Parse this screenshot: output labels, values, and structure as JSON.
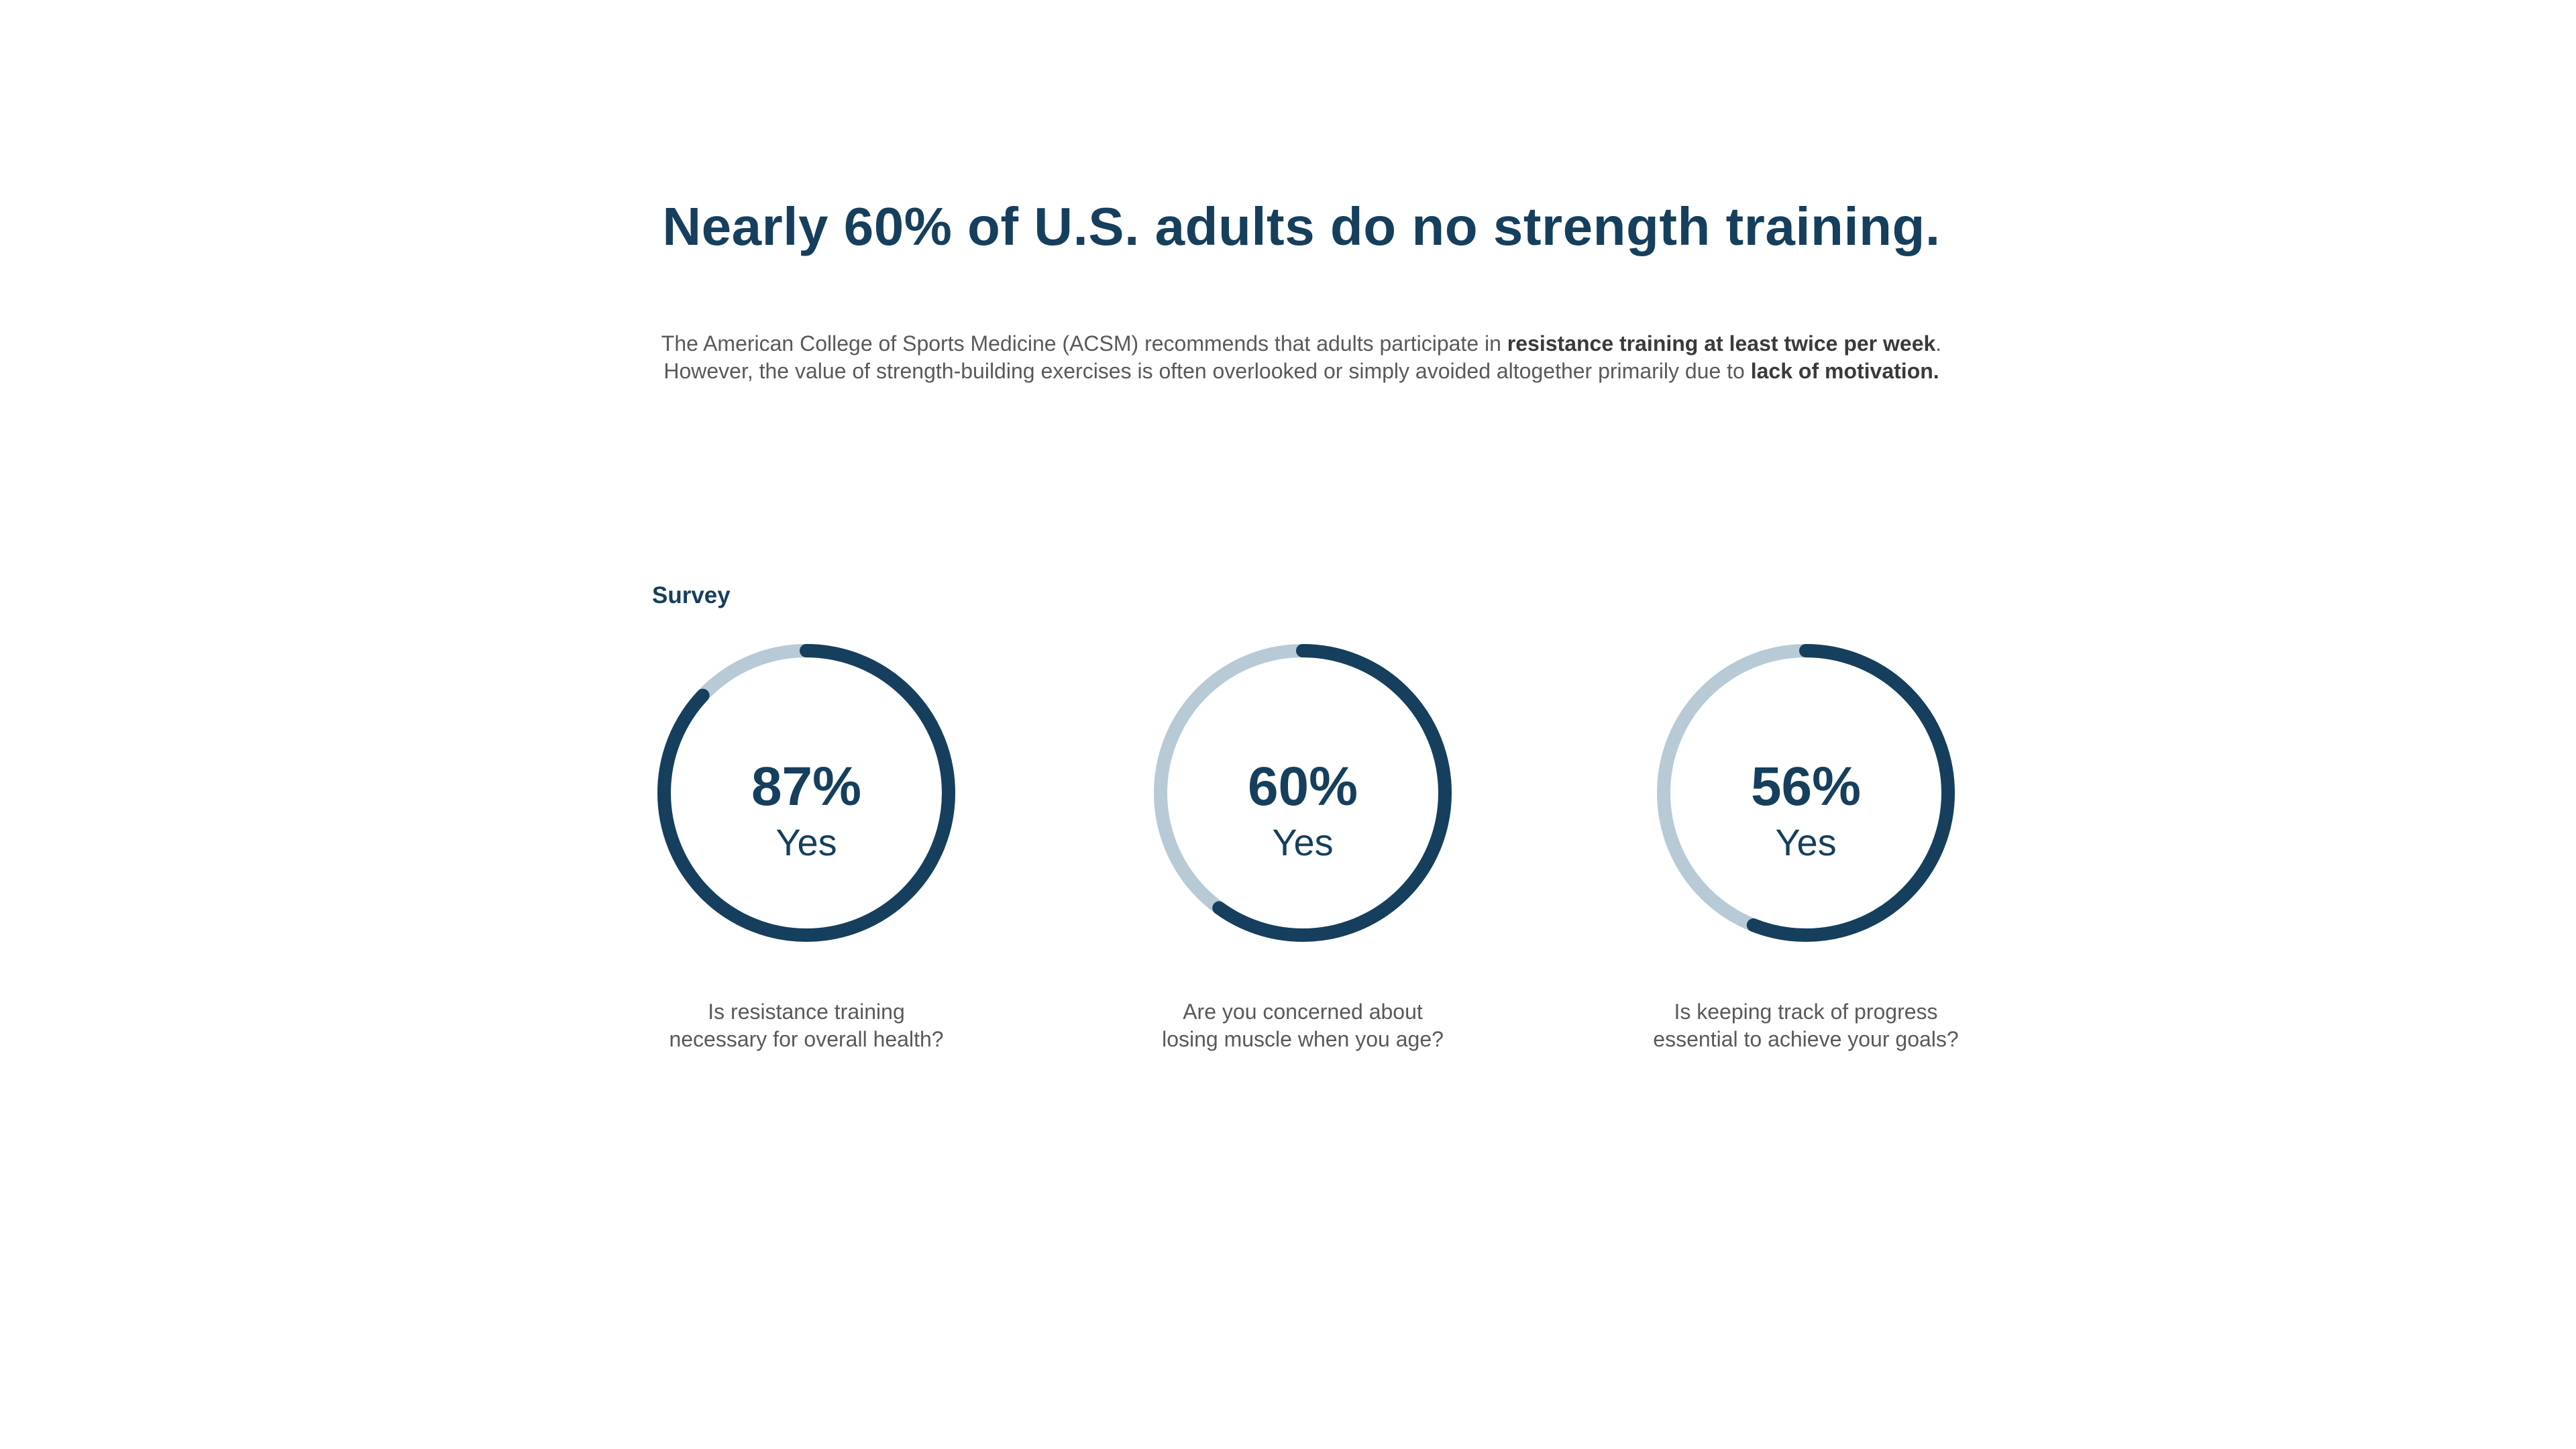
{
  "headline": "Nearly 60% of U.S. adults do no strength training.",
  "intro": {
    "line1_pre": "The American College of Sports Medicine (ACSM) recommends that adults participate in ",
    "line1_bold": "resistance training at least twice per week",
    "line1_post": ".",
    "line2_pre": "However, the value of strength-building exercises is often overlooked or simply avoided altogether primarily due to ",
    "line2_bold": "lack of motivation."
  },
  "survey_label": "Survey",
  "colors": {
    "accent": "#153f5d",
    "track": "#b7cad6",
    "body_text": "#595959"
  },
  "chart_data": {
    "type": "pie",
    "items": [
      {
        "percent_label": "87%",
        "answer": "Yes",
        "value": 87,
        "question_line1": "Is resistance training",
        "question_line2": "necessary for overall health?"
      },
      {
        "percent_label": "60%",
        "answer": "Yes",
        "value": 60,
        "question_line1": "Are you concerned about",
        "question_line2": "losing muscle when you age?"
      },
      {
        "percent_label": "56%",
        "answer": "Yes",
        "value": 56,
        "question_line1": "Is keeping track of progress",
        "question_line2": "essential to achieve your goals?"
      }
    ]
  }
}
